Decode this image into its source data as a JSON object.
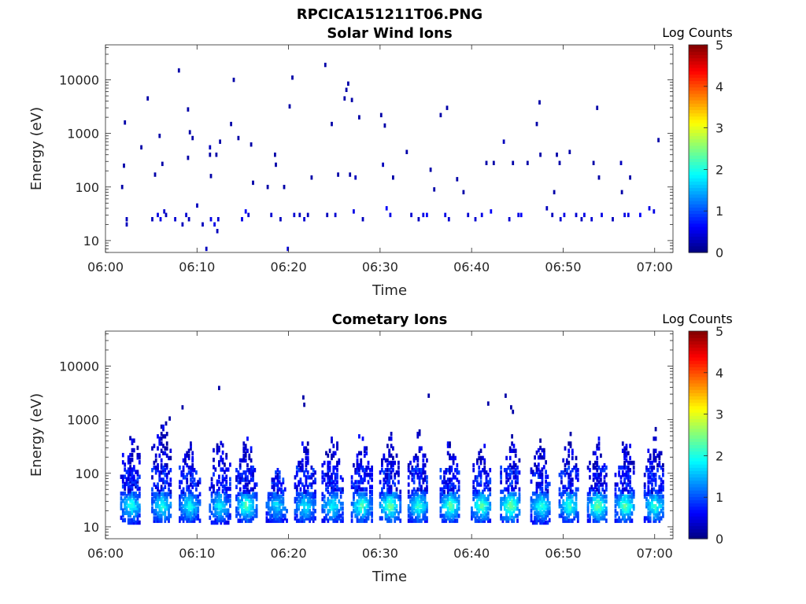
{
  "figure_title": "RPCICA151211T06.PNG",
  "chart_data": [
    {
      "type": "heatmap",
      "title": "Solar Wind Ions",
      "xlabel": "Time",
      "ylabel": "Energy (eV)",
      "x_ticks": [
        "06:00",
        "06:10",
        "06:20",
        "06:30",
        "06:40",
        "06:50",
        "07:00"
      ],
      "y_ticks": [
        "10",
        "100",
        "1000",
        "10000"
      ],
      "xlim": [
        "06:00",
        "07:02"
      ],
      "ylim": [
        6,
        45000
      ],
      "y_scale": "log",
      "colorbar": {
        "label": "Log Counts",
        "ticks": [
          "0",
          "1",
          "2",
          "3",
          "4",
          "5"
        ],
        "range": [
          0,
          5
        ],
        "colormap": "jet"
      },
      "cells": [
        [
          1.7,
          100,
          0.2
        ],
        [
          1.9,
          250,
          0.2
        ],
        [
          2.0,
          1600,
          0.2
        ],
        [
          2.2,
          25,
          0.3
        ],
        [
          2.2,
          20,
          0.3
        ],
        [
          3.8,
          550,
          0.2
        ],
        [
          4.5,
          4500,
          0.2
        ],
        [
          5.0,
          25,
          0.3
        ],
        [
          5.3,
          170,
          0.2
        ],
        [
          5.6,
          30,
          0.5
        ],
        [
          5.8,
          900,
          0.2
        ],
        [
          5.9,
          25,
          0.5
        ],
        [
          6.1,
          270,
          0.2
        ],
        [
          6.3,
          35,
          0.4
        ],
        [
          6.5,
          30,
          0.3
        ],
        [
          7.5,
          25,
          0.4
        ],
        [
          7.9,
          15000,
          0.2
        ],
        [
          8.3,
          20,
          0.3
        ],
        [
          8.7,
          30,
          0.4
        ],
        [
          8.9,
          2800,
          0.2
        ],
        [
          8.9,
          350,
          0.2
        ],
        [
          9.0,
          25,
          0.3
        ],
        [
          9.1,
          1050,
          0.2
        ],
        [
          9.4,
          820,
          0.2
        ],
        [
          9.9,
          45,
          0.3
        ],
        [
          10.5,
          20,
          0.3
        ],
        [
          10.9,
          7,
          0.3
        ],
        [
          11.3,
          550,
          0.3
        ],
        [
          11.3,
          400,
          0.2
        ],
        [
          11.4,
          160,
          0.2
        ],
        [
          11.4,
          25,
          0.5
        ],
        [
          11.8,
          20,
          0.5
        ],
        [
          12.0,
          400,
          0.2
        ],
        [
          12.1,
          15,
          0.3
        ],
        [
          12.2,
          25,
          0.4
        ],
        [
          12.4,
          700,
          0.2
        ],
        [
          13.6,
          1500,
          0.2
        ],
        [
          13.9,
          10000,
          0.2
        ],
        [
          14.4,
          820,
          0.2
        ],
        [
          14.8,
          25,
          0.5
        ],
        [
          15.2,
          35,
          0.6
        ],
        [
          15.5,
          30,
          0.4
        ],
        [
          15.8,
          620,
          0.2
        ],
        [
          16.0,
          120,
          0.2
        ],
        [
          17.6,
          100,
          0.2
        ],
        [
          18.0,
          30,
          0.4
        ],
        [
          18.4,
          400,
          0.2
        ],
        [
          18.5,
          260,
          0.2
        ],
        [
          19.0,
          25,
          0.3
        ],
        [
          19.4,
          100,
          0.2
        ],
        [
          19.8,
          7,
          0.5
        ],
        [
          20.0,
          3200,
          0.2
        ],
        [
          20.3,
          11000,
          0.2
        ],
        [
          20.5,
          30,
          0.4
        ],
        [
          21.1,
          30,
          0.3
        ],
        [
          21.6,
          25,
          0.4
        ],
        [
          22.0,
          30,
          0.3
        ],
        [
          22.4,
          150,
          0.2
        ],
        [
          23.9,
          19000,
          0.2
        ],
        [
          24.1,
          30,
          0.3
        ],
        [
          24.6,
          1500,
          0.2
        ],
        [
          25.0,
          30,
          0.4
        ],
        [
          25.3,
          170,
          0.2
        ],
        [
          26.0,
          4500,
          0.2
        ],
        [
          26.2,
          6500,
          0.2
        ],
        [
          26.4,
          8500,
          0.2
        ],
        [
          26.6,
          170,
          0.2
        ],
        [
          26.8,
          4200,
          0.2
        ],
        [
          27.0,
          35,
          0.5
        ],
        [
          27.2,
          150,
          0.3
        ],
        [
          27.6,
          2000,
          0.2
        ],
        [
          28.0,
          25,
          0.3
        ],
        [
          30.0,
          2200,
          0.2
        ],
        [
          30.2,
          260,
          0.3
        ],
        [
          30.4,
          1400,
          0.2
        ],
        [
          30.6,
          40,
          0.6
        ],
        [
          31.0,
          30,
          0.5
        ],
        [
          31.3,
          150,
          0.2
        ],
        [
          32.8,
          450,
          0.2
        ],
        [
          33.3,
          30,
          0.4
        ],
        [
          34.1,
          25,
          0.3
        ],
        [
          34.6,
          30,
          0.5
        ],
        [
          35.0,
          30,
          0.6
        ],
        [
          35.4,
          210,
          0.2
        ],
        [
          35.8,
          90,
          0.2
        ],
        [
          36.5,
          2200,
          0.2
        ],
        [
          37.0,
          30,
          0.5
        ],
        [
          37.2,
          3000,
          0.2
        ],
        [
          37.4,
          25,
          0.4
        ],
        [
          38.3,
          140,
          0.2
        ],
        [
          39.0,
          80,
          0.2
        ],
        [
          39.5,
          30,
          0.4
        ],
        [
          40.3,
          25,
          0.4
        ],
        [
          41.0,
          30,
          0.5
        ],
        [
          41.5,
          280,
          0.2
        ],
        [
          42.0,
          35,
          0.6
        ],
        [
          42.3,
          280,
          0.2
        ],
        [
          43.4,
          700,
          0.3
        ],
        [
          44.0,
          25,
          0.4
        ],
        [
          44.4,
          280,
          0.2
        ],
        [
          45.0,
          30,
          0.5
        ],
        [
          45.3,
          30,
          0.6
        ],
        [
          46.0,
          280,
          0.2
        ],
        [
          47.0,
          1500,
          0.2
        ],
        [
          47.3,
          3800,
          0.2
        ],
        [
          47.4,
          400,
          0.2
        ],
        [
          47.6,
          6,
          0.2
        ],
        [
          48.1,
          40,
          0.3
        ],
        [
          48.7,
          30,
          0.3
        ],
        [
          48.9,
          80,
          0.2
        ],
        [
          49.2,
          400,
          0.2
        ],
        [
          49.5,
          280,
          0.2
        ],
        [
          49.6,
          25,
          0.4
        ],
        [
          50.0,
          30,
          0.5
        ],
        [
          50.6,
          450,
          0.2
        ],
        [
          51.3,
          30,
          0.4
        ],
        [
          51.9,
          25,
          0.3
        ],
        [
          52.2,
          30,
          0.5
        ],
        [
          53.0,
          25,
          0.4
        ],
        [
          53.2,
          280,
          0.2
        ],
        [
          53.6,
          3000,
          0.2
        ],
        [
          53.8,
          150,
          0.2
        ],
        [
          54.1,
          30,
          0.5
        ],
        [
          55.3,
          25,
          0.3
        ],
        [
          56.2,
          280,
          0.3
        ],
        [
          56.3,
          80,
          0.2
        ],
        [
          56.6,
          30,
          0.5
        ],
        [
          57.0,
          30,
          0.5
        ],
        [
          57.2,
          150,
          0.2
        ],
        [
          58.3,
          30,
          0.6
        ],
        [
          59.3,
          40,
          0.5
        ],
        [
          59.8,
          35,
          0.5
        ],
        [
          60.3,
          750,
          0.2
        ]
      ]
    },
    {
      "type": "heatmap",
      "title": "Cometary Ions",
      "xlabel": "Time",
      "ylabel": "Energy (eV)",
      "x_ticks": [
        "06:00",
        "06:10",
        "06:20",
        "06:30",
        "06:40",
        "06:50",
        "07:00"
      ],
      "y_ticks": [
        "10",
        "100",
        "1000",
        "10000"
      ],
      "xlim": [
        "06:00",
        "07:02"
      ],
      "ylim": [
        6,
        45000
      ],
      "y_scale": "log",
      "colorbar": {
        "label": "Log Counts",
        "ticks": [
          "0",
          "1",
          "2",
          "3",
          "4",
          "5"
        ],
        "range": [
          0,
          5
        ],
        "colormap": "jet"
      },
      "bursts": [
        {
          "center": 2.7,
          "low": 12,
          "high": 650,
          "peak": 1.7
        },
        {
          "center": 6.1,
          "low": 13,
          "high": 1100,
          "peak": 1.7
        },
        {
          "center": 9.1,
          "low": 13,
          "high": 550,
          "peak": 1.6
        },
        {
          "center": 12.4,
          "low": 12,
          "high": 550,
          "peak": 1.5
        },
        {
          "center": 15.3,
          "low": 13,
          "high": 550,
          "peak": 1.9
        },
        {
          "center": 18.6,
          "low": 13,
          "high": 180,
          "peak": 1.4
        },
        {
          "center": 21.7,
          "low": 13,
          "high": 600,
          "peak": 1.5
        },
        {
          "center": 24.7,
          "low": 13,
          "high": 600,
          "peak": 1.6
        },
        {
          "center": 27.9,
          "low": 13,
          "high": 650,
          "peak": 1.9
        },
        {
          "center": 31.0,
          "low": 13,
          "high": 600,
          "peak": 2.1
        },
        {
          "center": 34.1,
          "low": 13,
          "high": 650,
          "peak": 1.8
        },
        {
          "center": 37.6,
          "low": 13,
          "high": 550,
          "peak": 2.0
        },
        {
          "center": 41.0,
          "low": 13,
          "high": 550,
          "peak": 2.0
        },
        {
          "center": 44.2,
          "low": 13,
          "high": 550,
          "peak": 2.2
        },
        {
          "center": 47.5,
          "low": 12,
          "high": 500,
          "peak": 1.8
        },
        {
          "center": 50.6,
          "low": 13,
          "high": 550,
          "peak": 1.8
        },
        {
          "center": 53.7,
          "low": 13,
          "high": 550,
          "peak": 2.1
        },
        {
          "center": 56.7,
          "low": 13,
          "high": 550,
          "peak": 2.0
        },
        {
          "center": 59.9,
          "low": 13,
          "high": 650,
          "peak": 1.8
        }
      ],
      "cells": [
        [
          6.9,
          1050,
          0.2
        ],
        [
          6.5,
          850,
          0.2
        ],
        [
          8.3,
          1700,
          0.2
        ],
        [
          12.3,
          3900,
          0.2
        ],
        [
          21.5,
          2600,
          0.2
        ],
        [
          21.6,
          1900,
          0.2
        ],
        [
          35.2,
          2800,
          0.2
        ],
        [
          41.7,
          2000,
          0.2
        ],
        [
          43.6,
          2800,
          0.2
        ],
        [
          44.2,
          1700,
          0.2
        ],
        [
          44.4,
          1400,
          0.2
        ]
      ]
    }
  ]
}
